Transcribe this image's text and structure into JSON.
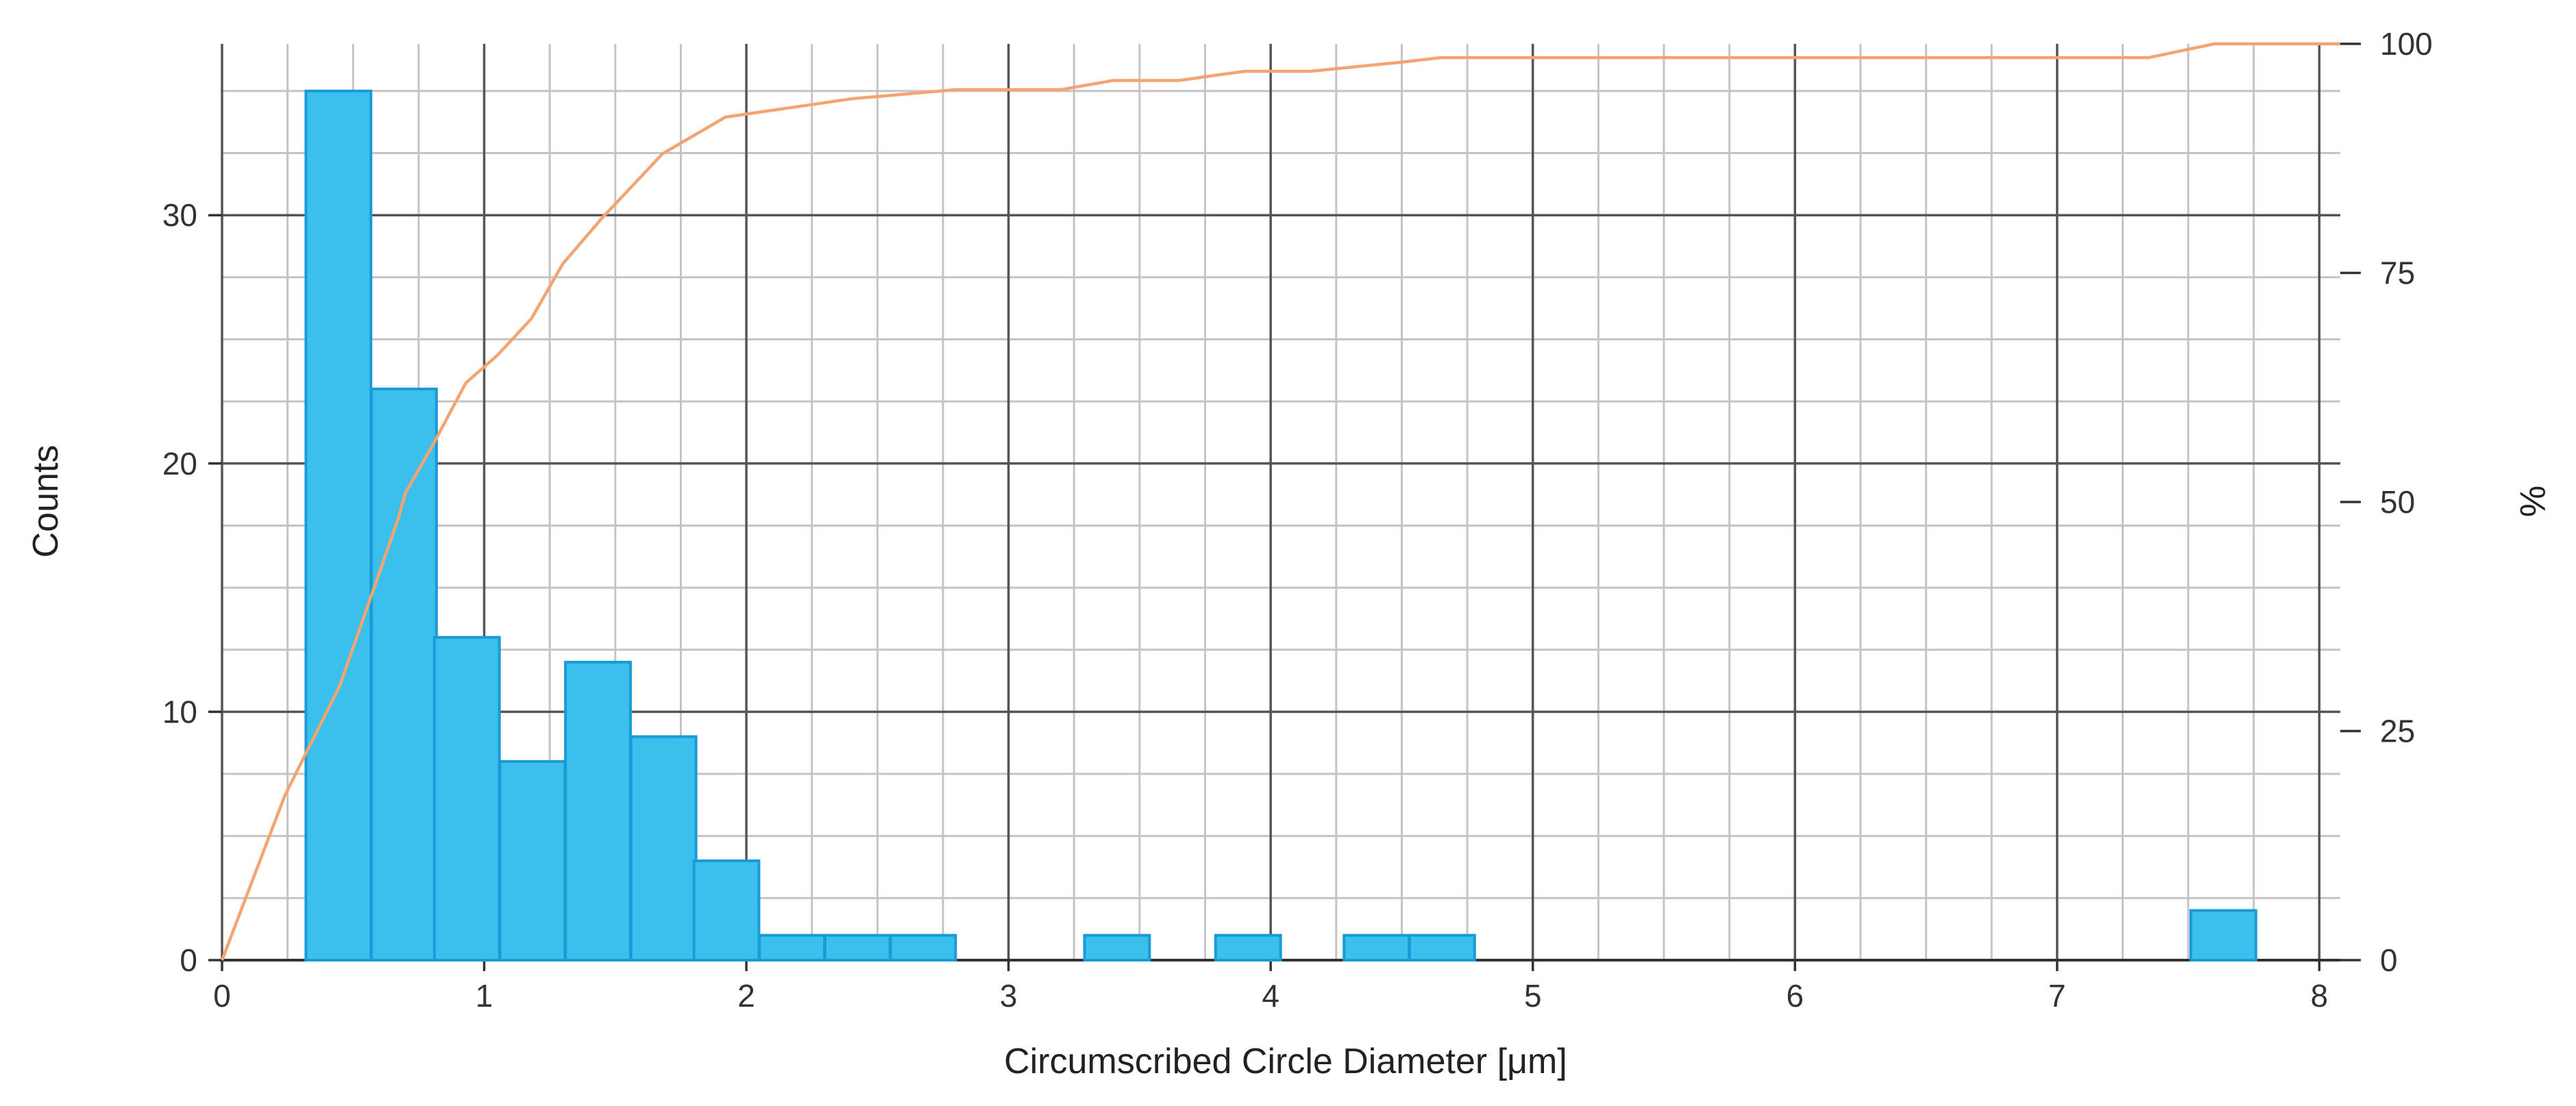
{
  "chart_data": {
    "type": "bar",
    "xlabel": "Circumscribed Circle Diameter [μm]",
    "ylabel": "Counts",
    "y2label": "%",
    "xlim": [
      0,
      8.08
    ],
    "ylim": [
      0,
      36.9
    ],
    "y2lim": [
      0,
      100
    ],
    "x_ticks": [
      0,
      1,
      2,
      3,
      4,
      5,
      6,
      7,
      8
    ],
    "y_ticks": [
      0,
      10,
      20,
      30
    ],
    "y2_ticks": [
      0,
      25,
      50,
      75,
      100
    ],
    "grid": true,
    "bin_width": 0.248,
    "series": [
      {
        "type": "bar",
        "axis": "left",
        "color": "#3bbfec",
        "edge_color": "#1a9ad6",
        "bins": [
          {
            "x_start": 0.32,
            "value": 35
          },
          {
            "x_start": 0.57,
            "value": 23
          },
          {
            "x_start": 0.81,
            "value": 13
          },
          {
            "x_start": 1.06,
            "value": 8
          },
          {
            "x_start": 1.31,
            "value": 12
          },
          {
            "x_start": 1.56,
            "value": 9
          },
          {
            "x_start": 1.8,
            "value": 4
          },
          {
            "x_start": 2.05,
            "value": 1
          },
          {
            "x_start": 2.3,
            "value": 1
          },
          {
            "x_start": 2.55,
            "value": 1
          },
          {
            "x_start": 3.29,
            "value": 1
          },
          {
            "x_start": 3.79,
            "value": 1
          },
          {
            "x_start": 4.28,
            "value": 1
          },
          {
            "x_start": 4.53,
            "value": 1
          },
          {
            "x_start": 7.51,
            "value": 2
          }
        ]
      },
      {
        "type": "line",
        "axis": "right",
        "color": "#f4a470",
        "points": [
          [
            0,
            0
          ],
          [
            0.24,
            18
          ],
          [
            0.45,
            30
          ],
          [
            0.67,
            48
          ],
          [
            0.7,
            51
          ],
          [
            0.8,
            56
          ],
          [
            0.93,
            63
          ],
          [
            1.05,
            66
          ],
          [
            1.18,
            70
          ],
          [
            1.3,
            76
          ],
          [
            1.45,
            81
          ],
          [
            1.68,
            88
          ],
          [
            1.92,
            92
          ],
          [
            2.4,
            94
          ],
          [
            2.8,
            95
          ],
          [
            3.2,
            95
          ],
          [
            3.4,
            96
          ],
          [
            3.65,
            96
          ],
          [
            3.9,
            97
          ],
          [
            4.15,
            97
          ],
          [
            4.5,
            98
          ],
          [
            4.65,
            98.5
          ],
          [
            7.35,
            98.5
          ],
          [
            7.6,
            100
          ],
          [
            8.08,
            100
          ]
        ]
      }
    ]
  }
}
